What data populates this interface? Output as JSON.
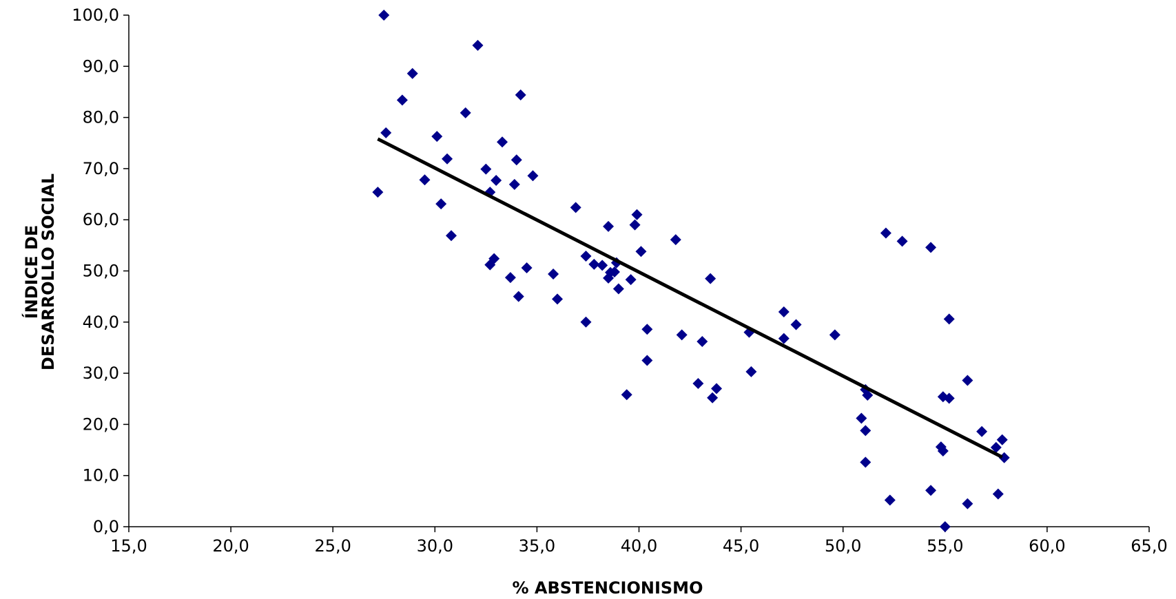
{
  "chart_data": {
    "type": "scatter",
    "title": "",
    "xlabel": "% ABSTENCIONISMO",
    "ylabel_lines": [
      "ÍNDICE DE",
      "DESARROLLO SOCIAL"
    ],
    "xlim": [
      15,
      65
    ],
    "ylim": [
      0,
      100
    ],
    "x_ticks": [
      15,
      20,
      25,
      30,
      35,
      40,
      45,
      50,
      55,
      60,
      65
    ],
    "y_ticks": [
      0,
      10,
      20,
      30,
      40,
      50,
      60,
      70,
      80,
      90,
      100
    ],
    "x_tick_labels": [
      "15,0",
      "20,0",
      "25,0",
      "30,0",
      "35,0",
      "40,0",
      "45,0",
      "50,0",
      "55,0",
      "60,0",
      "65,0"
    ],
    "y_tick_labels": [
      "0,0",
      "10,0",
      "20,0",
      "30,0",
      "40,0",
      "50,0",
      "60,0",
      "70,0",
      "80,0",
      "90,0",
      "100,0"
    ],
    "grid": false,
    "legend": "none",
    "marker_color": "#00008b",
    "trendline_color": "#000000",
    "trendline": {
      "x": [
        27.2,
        57.8
      ],
      "y": [
        75.8,
        13.6
      ]
    },
    "points": [
      [
        27.5,
        100.0
      ],
      [
        32.1,
        94.1
      ],
      [
        28.9,
        88.6
      ],
      [
        34.2,
        84.4
      ],
      [
        28.4,
        83.4
      ],
      [
        31.5,
        80.9
      ],
      [
        27.6,
        77.0
      ],
      [
        30.1,
        76.3
      ],
      [
        33.3,
        75.2
      ],
      [
        30.6,
        71.9
      ],
      [
        34.0,
        71.7
      ],
      [
        32.5,
        69.9
      ],
      [
        34.8,
        68.6
      ],
      [
        29.5,
        67.8
      ],
      [
        33.0,
        67.7
      ],
      [
        33.9,
        66.9
      ],
      [
        27.2,
        65.4
      ],
      [
        32.7,
        65.4
      ],
      [
        30.3,
        63.1
      ],
      [
        36.9,
        62.4
      ],
      [
        39.9,
        61.0
      ],
      [
        39.8,
        59.0
      ],
      [
        38.5,
        58.7
      ],
      [
        30.8,
        56.9
      ],
      [
        52.1,
        57.4
      ],
      [
        41.8,
        56.1
      ],
      [
        52.9,
        55.8
      ],
      [
        54.3,
        54.6
      ],
      [
        40.1,
        53.8
      ],
      [
        37.4,
        52.9
      ],
      [
        32.9,
        52.4
      ],
      [
        38.9,
        51.6
      ],
      [
        32.7,
        51.2
      ],
      [
        37.8,
        51.3
      ],
      [
        38.2,
        51.1
      ],
      [
        34.5,
        50.6
      ],
      [
        38.8,
        49.8
      ],
      [
        38.6,
        49.7
      ],
      [
        35.8,
        49.4
      ],
      [
        33.7,
        48.7
      ],
      [
        38.5,
        48.6
      ],
      [
        39.6,
        48.3
      ],
      [
        43.5,
        48.5
      ],
      [
        39.0,
        46.5
      ],
      [
        34.1,
        45.0
      ],
      [
        36.0,
        44.5
      ],
      [
        47.1,
        42.0
      ],
      [
        55.2,
        40.6
      ],
      [
        37.4,
        40.0
      ],
      [
        47.7,
        39.5
      ],
      [
        40.4,
        38.6
      ],
      [
        45.4,
        38.0
      ],
      [
        49.6,
        37.5
      ],
      [
        42.1,
        37.5
      ],
      [
        47.1,
        36.8
      ],
      [
        43.1,
        36.2
      ],
      [
        40.4,
        32.5
      ],
      [
        45.5,
        30.3
      ],
      [
        56.1,
        28.6
      ],
      [
        42.9,
        28.0
      ],
      [
        43.8,
        27.0
      ],
      [
        51.1,
        26.8
      ],
      [
        51.2,
        25.7
      ],
      [
        39.4,
        25.8
      ],
      [
        43.6,
        25.2
      ],
      [
        54.9,
        25.4
      ],
      [
        55.2,
        25.1
      ],
      [
        50.9,
        21.2
      ],
      [
        51.1,
        18.8
      ],
      [
        56.8,
        18.6
      ],
      [
        57.8,
        17.0
      ],
      [
        54.8,
        15.6
      ],
      [
        57.5,
        15.5
      ],
      [
        54.9,
        14.8
      ],
      [
        57.9,
        13.5
      ],
      [
        51.1,
        12.6
      ],
      [
        54.3,
        7.1
      ],
      [
        57.6,
        6.4
      ],
      [
        52.3,
        5.2
      ],
      [
        56.1,
        4.5
      ],
      [
        55.0,
        0.0
      ]
    ]
  }
}
